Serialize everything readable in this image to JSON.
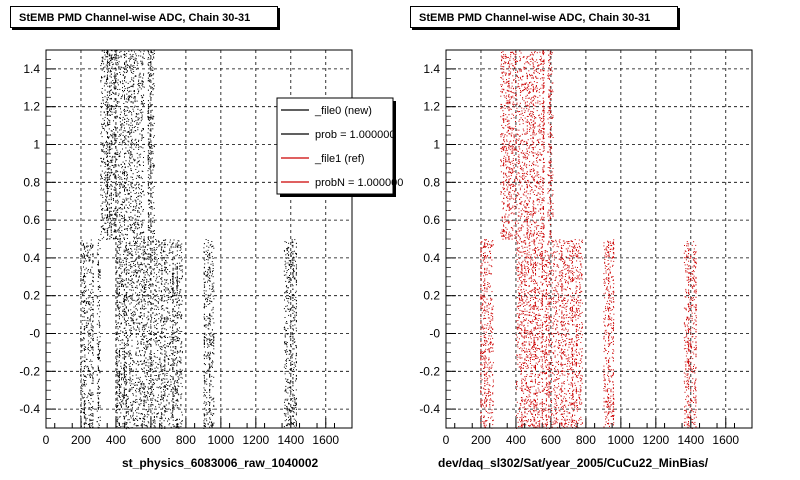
{
  "panels": [
    {
      "title": "StEMB PMD Channel-wise ADC, Chain 30-31",
      "xlabel": "st_physics_6083006_raw_1040002",
      "legend": [
        {
          "label": "_file0 (new)",
          "color": "#000000"
        },
        {
          "label": "prob = 1.000000",
          "color": "#000000"
        },
        {
          "label": "_file1 (ref)",
          "color": "#cc0000"
        },
        {
          "label": "probN = 1.000000",
          "color": "#cc0000"
        }
      ]
    },
    {
      "title": "StEMB PMD Channel-wise ADC, Chain 30-31",
      "xlabel": "dev/daq_sl302/Sat/year_2005/CuCu22_MinBias/",
      "legend": []
    }
  ],
  "footer_note": "... ...  ...  ...",
  "chart_data": [
    {
      "type": "scatter",
      "title": "StEMB PMD Channel-wise ADC, Chain 30-31",
      "xlabel": "st_physics_6083006_raw_1040002",
      "ylabel": "",
      "xlim": [
        0,
        1750
      ],
      "ylim": [
        -0.5,
        1.5
      ],
      "grid": true,
      "legend_position": "top-right",
      "x_ticks": [
        "0",
        "200",
        "400",
        "600",
        "800",
        "1000",
        "1200",
        "1400",
        "1600"
      ],
      "y_ticks": [
        "-0.4",
        "-0.2",
        "-0",
        "0.2",
        "0.4",
        "0.6",
        "0.8",
        "1",
        "1.2",
        "1.4"
      ],
      "series": [
        {
          "name": "_file0 (new)",
          "color": "#000000",
          "bands": [
            {
              "x": [
                195,
                270
              ],
              "y": [
                -0.5,
                0.5
              ]
            },
            {
              "x": [
                290,
                310
              ],
              "y": [
                -0.5,
                0.5
              ]
            },
            {
              "x": [
                310,
                560
              ],
              "y": [
                0.5,
                1.5
              ]
            },
            {
              "x": [
                400,
                780
              ],
              "y": [
                -0.5,
                0.5
              ]
            },
            {
              "x": [
                580,
                620
              ],
              "y": [
                0.5,
                1.5
              ]
            },
            {
              "x": [
                900,
                960
              ],
              "y": [
                -0.5,
                0.5
              ]
            },
            {
              "x": [
                1360,
                1430
              ],
              "y": [
                -0.5,
                0.5
              ]
            }
          ]
        }
      ]
    },
    {
      "type": "scatter",
      "title": "StEMB PMD Channel-wise ADC, Chain 30-31",
      "xlabel": "dev/daq_sl302/Sat/year_2005/CuCu22_MinBias/",
      "ylabel": "",
      "xlim": [
        0,
        1750
      ],
      "ylim": [
        -0.5,
        1.5
      ],
      "grid": true,
      "x_ticks": [
        "0",
        "200",
        "400",
        "600",
        "800",
        "1000",
        "1200",
        "1400",
        "1600"
      ],
      "y_ticks": [
        "-0.4",
        "-0.2",
        "-0",
        "0.2",
        "0.4",
        "0.6",
        "0.8",
        "1",
        "1.2",
        "1.4"
      ],
      "series": [
        {
          "name": "_file1 (ref)",
          "color": "#cc0000",
          "bands": [
            {
              "x": [
                195,
                270
              ],
              "y": [
                -0.5,
                0.5
              ]
            },
            {
              "x": [
                310,
                560
              ],
              "y": [
                0.5,
                1.5
              ]
            },
            {
              "x": [
                400,
                780
              ],
              "y": [
                -0.5,
                0.5
              ]
            },
            {
              "x": [
                580,
                610
              ],
              "y": [
                0.5,
                1.5
              ]
            },
            {
              "x": [
                900,
                960
              ],
              "y": [
                -0.5,
                0.5
              ]
            },
            {
              "x": [
                1360,
                1430
              ],
              "y": [
                -0.5,
                0.5
              ]
            }
          ]
        }
      ]
    }
  ]
}
